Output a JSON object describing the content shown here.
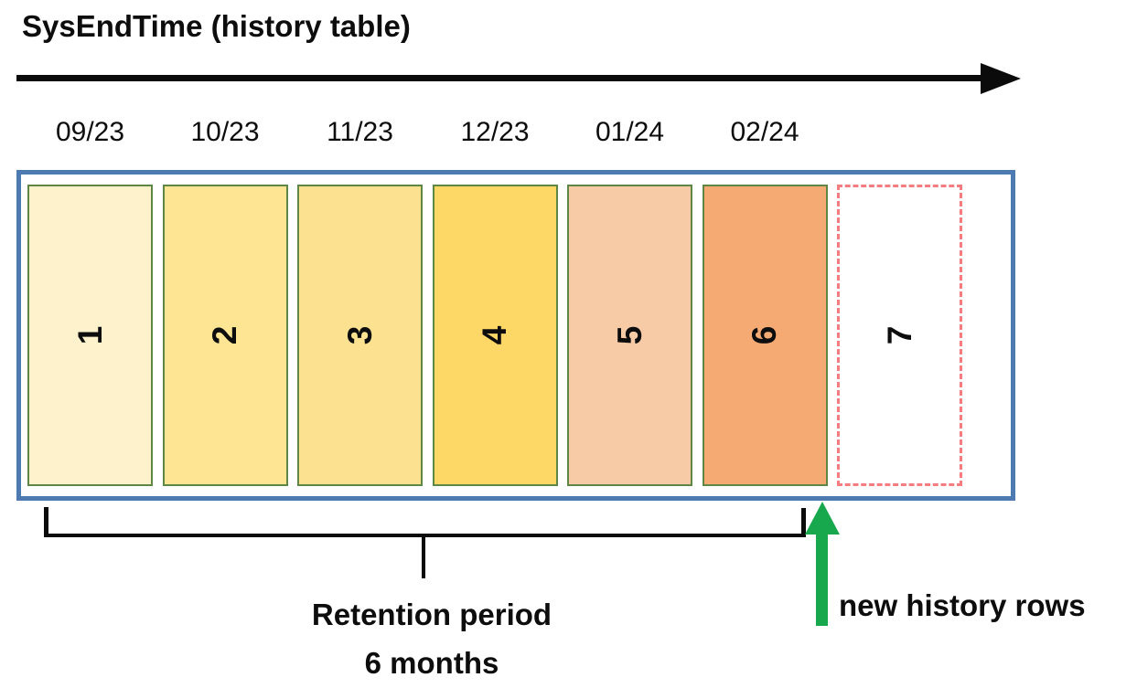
{
  "title": "SysEndTime (history table)",
  "months": [
    "09/23",
    "10/23",
    "11/23",
    "12/23",
    "01/24",
    "02/24"
  ],
  "partitions": [
    {
      "label": "1",
      "fill": "#fdf2cc",
      "style": "solid"
    },
    {
      "label": "2",
      "fill": "#fde594",
      "style": "solid"
    },
    {
      "label": "3",
      "fill": "#fce290",
      "style": "solid"
    },
    {
      "label": "4",
      "fill": "#fdd866",
      "style": "solid"
    },
    {
      "label": "5",
      "fill": "#f8cba7",
      "style": "solid"
    },
    {
      "label": "6",
      "fill": "#f5aa73",
      "style": "solid"
    },
    {
      "label": "7",
      "fill": "#ffffff",
      "style": "dashed"
    }
  ],
  "retention": {
    "line1": "Retention period",
    "line2": "6 months"
  },
  "new_rows_label": "new history rows",
  "colors": {
    "ink": "#0b0b0b",
    "container_border": "#4d7ab0",
    "partition_border": "#5e8745",
    "dashed_border": "#f57d7f",
    "green_arrow": "#17a84d"
  }
}
